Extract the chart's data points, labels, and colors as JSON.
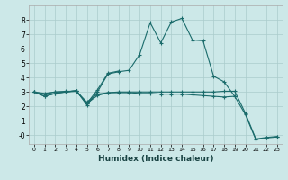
{
  "xlabel": "Humidex (Indice chaleur)",
  "background_color": "#cce8e8",
  "grid_color": "#aacccc",
  "line_color": "#1a6b6b",
  "xlim": [
    -0.5,
    23.5
  ],
  "ylim": [
    -0.6,
    9.0
  ],
  "xticks": [
    0,
    1,
    2,
    3,
    4,
    5,
    6,
    7,
    8,
    9,
    10,
    11,
    12,
    13,
    14,
    15,
    16,
    17,
    18,
    19,
    20,
    21,
    22,
    23
  ],
  "yticks": [
    0,
    1,
    2,
    3,
    4,
    5,
    6,
    7,
    8
  ],
  "ytick_labels": [
    "-0",
    "1",
    "2",
    "3",
    "4",
    "5",
    "6",
    "7",
    "8"
  ],
  "series": [
    {
      "x": [
        0,
        1,
        2,
        3,
        4,
        5,
        6,
        7,
        8,
        9,
        10,
        11,
        12,
        13,
        14,
        15,
        16,
        17,
        18,
        19
      ],
      "y": [
        3.0,
        2.7,
        2.9,
        3.0,
        3.1,
        2.1,
        3.0,
        4.25,
        4.4,
        4.5,
        5.6,
        7.8,
        6.4,
        7.85,
        8.1,
        6.6,
        6.55,
        4.1,
        3.7,
        2.7
      ]
    },
    {
      "x": [
        0,
        1,
        2,
        3,
        4,
        5,
        6,
        7,
        8
      ],
      "y": [
        3.0,
        2.7,
        2.9,
        3.0,
        3.1,
        2.2,
        3.15,
        4.3,
        4.45
      ]
    },
    {
      "x": [
        0,
        1,
        2,
        3,
        4,
        5,
        6,
        7,
        8,
        9,
        10,
        11,
        12,
        13,
        14,
        15,
        16,
        17,
        18,
        19,
        20,
        21,
        22,
        23
      ],
      "y": [
        3.0,
        2.85,
        3.0,
        3.0,
        3.05,
        2.2,
        2.75,
        2.95,
        2.95,
        2.95,
        2.9,
        2.9,
        2.85,
        2.85,
        2.85,
        2.8,
        2.75,
        2.7,
        2.65,
        2.7,
        1.45,
        -0.3,
        -0.18,
        -0.12
      ]
    },
    {
      "x": [
        0,
        1,
        2,
        3,
        4,
        5,
        6,
        7,
        8,
        9,
        10,
        11,
        12,
        13,
        14,
        15,
        16,
        17,
        18,
        19,
        20,
        21,
        22,
        23
      ],
      "y": [
        3.0,
        2.9,
        3.0,
        3.05,
        3.05,
        2.3,
        2.85,
        2.95,
        3.0,
        3.0,
        3.0,
        3.0,
        3.0,
        3.0,
        3.0,
        3.0,
        3.0,
        3.0,
        3.05,
        3.05,
        1.55,
        -0.25,
        -0.15,
        -0.08
      ]
    }
  ]
}
